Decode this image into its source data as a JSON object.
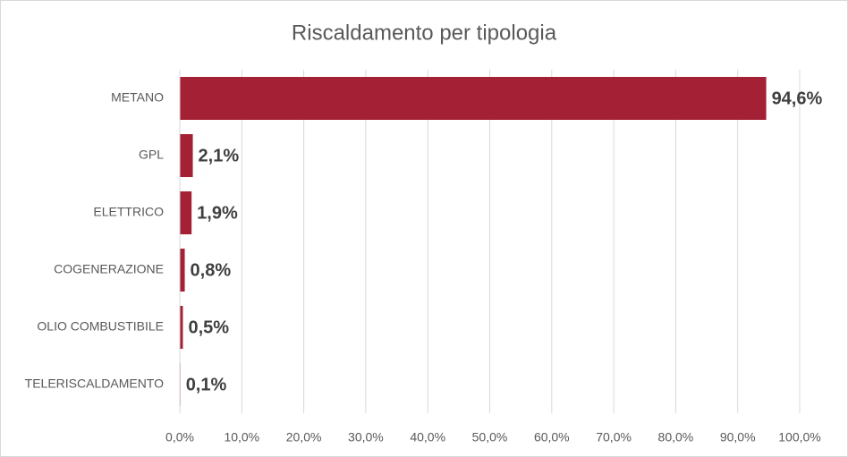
{
  "chart_data": {
    "type": "bar",
    "orientation": "horizontal",
    "title": "Riscaldamento per tipologia",
    "categories": [
      "METANO",
      "GPL",
      "ELETTRICO",
      "COGENERAZIONE",
      "OLIO COMBUSTIBILE",
      "TELERISCALDAMENTO"
    ],
    "values": [
      94.6,
      2.1,
      1.9,
      0.8,
      0.5,
      0.1
    ],
    "value_labels": [
      "94,6%",
      "2,1%",
      "1,9%",
      "0,8%",
      "0,5%",
      "0,1%"
    ],
    "color": "#a32035",
    "xlim": [
      0,
      100
    ],
    "xticks": [
      {
        "value": 0,
        "label": "0,0%"
      },
      {
        "value": 10,
        "label": "10,0%"
      },
      {
        "value": 20,
        "label": "20,0%"
      },
      {
        "value": 30,
        "label": "30,0%"
      },
      {
        "value": 40,
        "label": "40,0%"
      },
      {
        "value": 50,
        "label": "50,0%"
      },
      {
        "value": 60,
        "label": "60,0%"
      },
      {
        "value": 70,
        "label": "70,0%"
      },
      {
        "value": 80,
        "label": "80,0%"
      },
      {
        "value": 90,
        "label": "90,0%"
      },
      {
        "value": 100,
        "label": "100,0%"
      }
    ],
    "grid": true
  }
}
